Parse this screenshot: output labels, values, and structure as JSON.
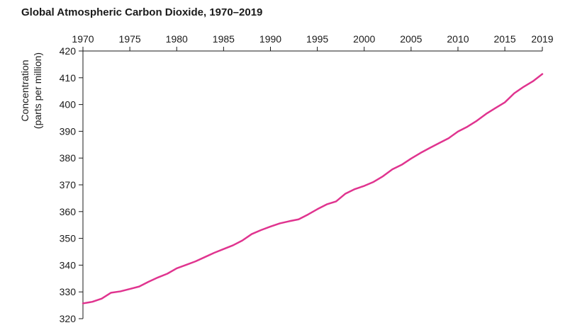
{
  "chart_data": {
    "type": "line",
    "title": "Global Atmospheric Carbon Dioxide, 1970–2019",
    "xlabel": "",
    "ylabel": "Concentration",
    "ylabel_line2": "(parts per million)",
    "xlim": [
      1970,
      2019
    ],
    "ylim": [
      320,
      420
    ],
    "x_ticks": [
      1970,
      1975,
      1980,
      1985,
      1990,
      1995,
      2000,
      2005,
      2010,
      2015,
      2019
    ],
    "y_ticks": [
      320,
      330,
      340,
      350,
      360,
      370,
      380,
      390,
      400,
      410,
      420
    ],
    "x_axis_position": "top",
    "grid": false,
    "series": [
      {
        "color": "#e0348f",
        "x": [
          1970,
          1971,
          1972,
          1973,
          1974,
          1975,
          1976,
          1977,
          1978,
          1979,
          1980,
          1981,
          1982,
          1983,
          1984,
          1985,
          1986,
          1987,
          1988,
          1989,
          1990,
          1991,
          1992,
          1993,
          1994,
          1995,
          1996,
          1997,
          1998,
          1999,
          2000,
          2001,
          2002,
          2003,
          2004,
          2005,
          2006,
          2007,
          2008,
          2009,
          2010,
          2011,
          2012,
          2013,
          2014,
          2015,
          2016,
          2017,
          2018,
          2019
        ],
        "values": [
          325.7,
          326.3,
          327.5,
          329.7,
          330.2,
          331.1,
          332.0,
          333.8,
          335.4,
          336.8,
          338.8,
          340.1,
          341.4,
          343.0,
          344.6,
          346.0,
          347.4,
          349.2,
          351.6,
          353.1,
          354.4,
          355.6,
          356.4,
          357.1,
          358.9,
          360.9,
          362.7,
          363.8,
          366.7,
          368.4,
          369.6,
          371.1,
          373.2,
          375.8,
          377.5,
          379.8,
          381.9,
          383.8,
          385.6,
          387.4,
          389.9,
          391.7,
          393.9,
          396.5,
          398.7,
          400.8,
          404.2,
          406.6,
          408.7,
          411.4
        ]
      }
    ]
  }
}
